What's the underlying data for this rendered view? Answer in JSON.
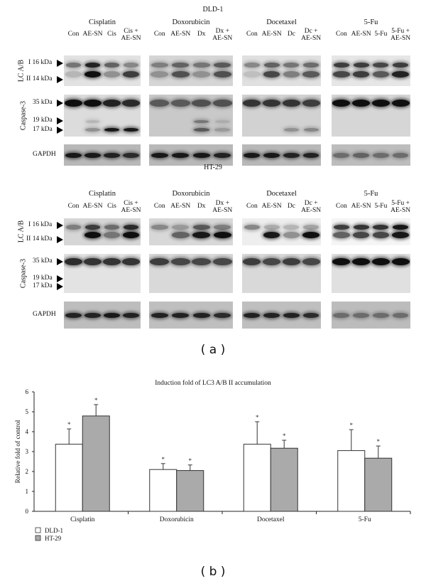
{
  "panel_a": {
    "label": "( a )",
    "cell_lines": [
      {
        "name": "DLD-1",
        "groups": [
          {
            "title": "Cisplatin",
            "lanes": [
              "Con",
              "AE-SN",
              "Cis",
              "Cis +\nAE-SN"
            ]
          },
          {
            "title": "Doxorubicin",
            "lanes": [
              "Con",
              "AE-SN",
              "Dx",
              "Dx +\nAE-SN"
            ]
          },
          {
            "title": "Docetaxel",
            "lanes": [
              "Con",
              "AE-SN",
              "Dc",
              "Dc +\nAE-SN"
            ]
          },
          {
            "title": "5-Fu",
            "lanes": [
              "Con",
              "AE-SN",
              "5-Fu",
              "5-Fu +\nAE-SN"
            ]
          }
        ],
        "rows": {
          "lc": {
            "label": "LC A/B",
            "markers": [
              "I 16 kDa",
              "II 14 kDa"
            ]
          },
          "caspase": {
            "label": "Caspase-3",
            "markers": [
              "35 kDa",
              "19 kDa",
              "17 kDa"
            ]
          },
          "gapdh": {
            "label": "GAPDH"
          }
        }
      },
      {
        "name": "HT-29",
        "groups": [
          {
            "title": "Cisplatin",
            "lanes": [
              "Con",
              "AE-SN",
              "Cis",
              "Cis +\nAE-SN"
            ]
          },
          {
            "title": "Doxorubicin",
            "lanes": [
              "Con",
              "AE-SN",
              "Dx",
              "Dx +\nAE-SN"
            ]
          },
          {
            "title": "Docetaxel",
            "lanes": [
              "Con",
              "AE-SN",
              "Dc",
              "Dc +\nAE-SN"
            ]
          },
          {
            "title": "5-Fu",
            "lanes": [
              "Con",
              "AE-SN",
              "5-Fu",
              "5-Fu +\nAE-SN"
            ]
          }
        ],
        "rows": {
          "lc": {
            "label": "LC A/B",
            "markers": [
              "I 16 kDa",
              "II 14 kDa"
            ]
          },
          "caspase": {
            "label": "Caspase-3",
            "markers": [
              "35 kDa",
              "19 kDa",
              "17 kDa"
            ]
          },
          "gapdh": {
            "label": "GAPDH"
          }
        }
      }
    ]
  },
  "panel_b": {
    "label": "( b )"
  },
  "chart_data": {
    "type": "bar",
    "title": "Induction fold of LC3 A/B II accumulation",
    "xlabel": "",
    "ylabel": "Relative fold of control",
    "ylim": [
      0,
      6
    ],
    "yticks": [
      0,
      1,
      2,
      3,
      4,
      5,
      6
    ],
    "categories": [
      "Cisplatin",
      "Doxorubicin",
      "Docetaxel",
      "5-Fu"
    ],
    "series": [
      {
        "name": "DLD-1",
        "color": "#ffffff",
        "values": [
          3.37,
          2.1,
          3.37,
          3.05
        ],
        "error_upper": [
          4.14,
          2.4,
          4.5,
          4.1
        ],
        "significance": [
          "*",
          "*",
          "*",
          "*"
        ]
      },
      {
        "name": "HT-29",
        "color": "#aaaaaa",
        "values": [
          4.79,
          2.05,
          3.17,
          2.67
        ],
        "error_upper": [
          5.36,
          2.33,
          3.57,
          3.28
        ],
        "significance": [
          "*",
          "*",
          "*",
          "*"
        ]
      }
    ],
    "legend": {
      "position": "bottom-left",
      "entries": [
        "DLD-1",
        "HT-29"
      ]
    },
    "grid": false
  }
}
